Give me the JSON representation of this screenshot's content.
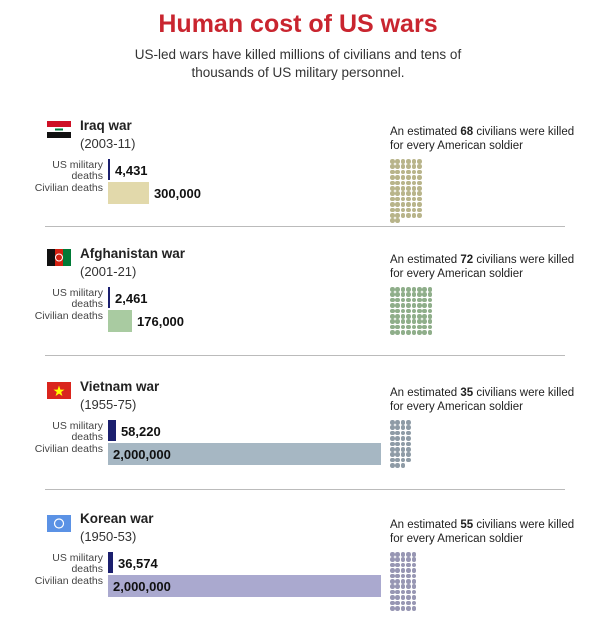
{
  "title": "Human cost of US wars",
  "subtitle": "US-led wars have killed millions of civilians and tens of thousands of US military personnel.",
  "categories": [
    "US military deaths",
    "Civilian deaths"
  ],
  "ratio_prefix": "An estimated",
  "ratio_suffix": "civilians were killed for every American soldier",
  "xlim": [
    0,
    2000000
  ],
  "military_color": "#1b1f6e",
  "wars": [
    {
      "name": "Iraq war",
      "years": "(2003-11)",
      "values": [
        4431,
        300000
      ],
      "value_labels": [
        "4,431",
        "300,000"
      ],
      "ratio": 68,
      "color": "#e2d9ab",
      "dot_color": "#b8b48a"
    },
    {
      "name": "Afghanistan war",
      "years": "(2001-21)",
      "values": [
        2461,
        176000
      ],
      "value_labels": [
        "2,461",
        "176,000"
      ],
      "ratio": 72,
      "color": "#a9cba1",
      "dot_color": "#8fae8a"
    },
    {
      "name": "Vietnam war",
      "years": "(1955-75)",
      "values": [
        58220,
        2000000
      ],
      "value_labels": [
        "58,220",
        "2,000,000"
      ],
      "ratio": 35,
      "color": "#a6b7c3",
      "dot_color": "#8e9ba6"
    },
    {
      "name": "Korean war",
      "years": "(1950-53)",
      "values": [
        36574,
        2000000
      ],
      "value_labels": [
        "36,574",
        "2,000,000"
      ],
      "ratio": 55,
      "color": "#aaa9cf",
      "dot_color": "#9796b3"
    }
  ]
}
